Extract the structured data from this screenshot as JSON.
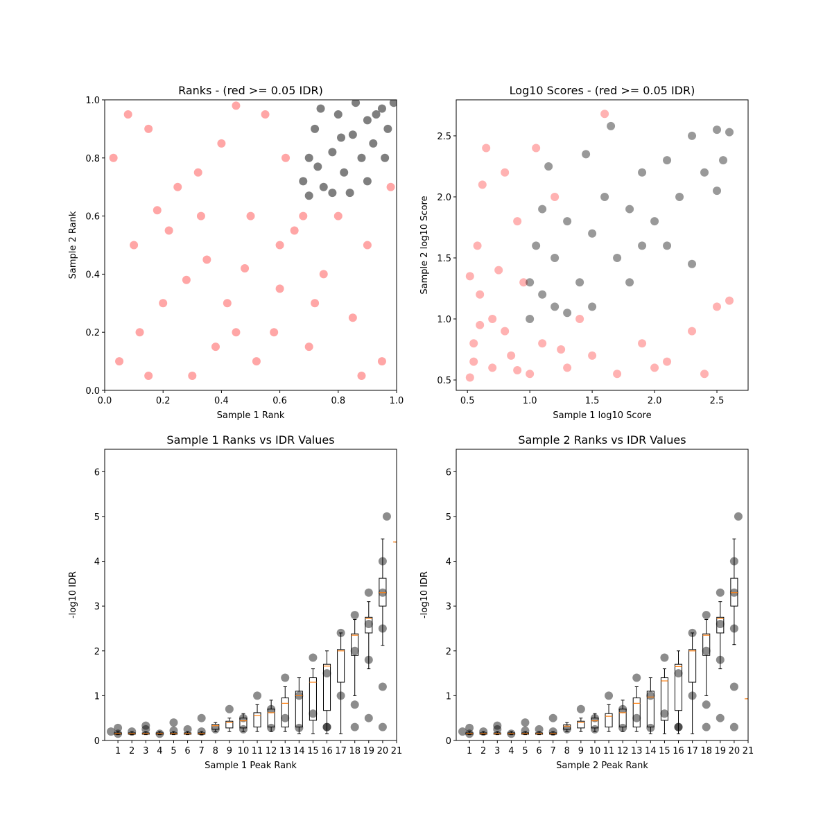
{
  "chart_data": [
    {
      "type": "scatter",
      "title": "Ranks - (red >= 0.05 IDR)",
      "xlabel": "Sample 1 Rank",
      "ylabel": "Sample 2 Rank",
      "xlim": [
        0,
        1
      ],
      "ylim": [
        0,
        1
      ],
      "xticks": [
        {
          "value": 0,
          "label": "0.0"
        },
        0.2,
        0.4,
        0.6,
        0.8,
        {
          "value": 1,
          "label": "1.0"
        }
      ],
      "yticks": [
        {
          "value": 0,
          "label": "0.0"
        },
        0.2,
        0.4,
        0.6,
        0.8,
        {
          "value": 1,
          "label": "1.0"
        }
      ],
      "series": [
        {
          "color": "red",
          "alpha": 0.35,
          "x": [
            0.05,
            0.1,
            0.15,
            0.2,
            0.25,
            0.3,
            0.35,
            0.4,
            0.45,
            0.5,
            0.55,
            0.6,
            0.65,
            0.7,
            0.75,
            0.8,
            0.85,
            0.9,
            0.95,
            0.98,
            0.12,
            0.22,
            0.32,
            0.42,
            0.52,
            0.62,
            0.08,
            0.18,
            0.28,
            0.48,
            0.58,
            0.38,
            0.72,
            0.88,
            0.03,
            0.45,
            0.68,
            0.33,
            0.15,
            0.6
          ],
          "values": [
            0.1,
            0.5,
            0.9,
            0.3,
            0.7,
            0.05,
            0.45,
            0.85,
            0.2,
            0.6,
            0.95,
            0.35,
            0.55,
            0.15,
            0.4,
            0.6,
            0.25,
            0.5,
            0.1,
            0.7,
            0.2,
            0.55,
            0.75,
            0.3,
            0.1,
            0.8,
            0.95,
            0.62,
            0.38,
            0.42,
            0.2,
            0.15,
            0.3,
            0.05,
            0.8,
            0.98,
            0.6,
            0.6,
            0.05,
            0.5
          ]
        },
        {
          "color": "black",
          "alpha": 0.5,
          "x": [
            0.68,
            0.7,
            0.72,
            0.75,
            0.78,
            0.8,
            0.82,
            0.85,
            0.88,
            0.9,
            0.92,
            0.95,
            0.97,
            0.99,
            0.74,
            0.84,
            0.78,
            0.9,
            0.96,
            0.86,
            0.73,
            0.81,
            0.93,
            0.7
          ],
          "values": [
            0.72,
            0.8,
            0.9,
            0.7,
            0.82,
            0.95,
            0.75,
            0.88,
            0.8,
            0.93,
            0.85,
            0.97,
            0.9,
            0.99,
            0.97,
            0.68,
            0.68,
            0.72,
            0.8,
            0.99,
            0.77,
            0.87,
            0.95,
            0.67
          ]
        }
      ]
    },
    {
      "type": "scatter",
      "title": "Log10 Scores - (red >= 0.05 IDR)",
      "xlabel": "Sample 1 log10 Score",
      "ylabel": "Sample 2 log10 Score",
      "xlim": [
        0.41,
        2.75
      ],
      "ylim": [
        0.415,
        2.795
      ],
      "xticks": [
        0.5,
        {
          "value": 1,
          "label": "1.0"
        },
        1.5,
        {
          "value": 2,
          "label": "2.0"
        },
        2.5
      ],
      "yticks": [
        0.5,
        {
          "value": 1,
          "label": "1.0"
        },
        1.5,
        {
          "value": 2,
          "label": "2.0"
        },
        2.5
      ],
      "series": [
        {
          "color": "red",
          "alpha": 0.3,
          "x": [
            0.52,
            0.55,
            0.6,
            0.58,
            0.62,
            0.7,
            0.8,
            0.75,
            0.9,
            0.65,
            1.0,
            1.1,
            1.3,
            1.5,
            1.4,
            1.7,
            1.9,
            2.1,
            2.3,
            2.5,
            2.4,
            0.55,
            0.6,
            0.85,
            0.7,
            0.95,
            1.2,
            1.05,
            0.8,
            2.6,
            1.6,
            0.52,
            0.9,
            1.25,
            2.0
          ],
          "values": [
            0.52,
            0.8,
            1.2,
            1.6,
            2.1,
            0.6,
            0.9,
            1.4,
            1.8,
            2.4,
            0.55,
            0.8,
            0.6,
            0.7,
            1.0,
            0.55,
            0.8,
            0.65,
            0.9,
            1.1,
            0.55,
            0.65,
            0.95,
            0.7,
            1.0,
            1.3,
            2.0,
            2.4,
            2.2,
            1.15,
            2.68,
            1.35,
            0.58,
            0.75,
            0.6
          ]
        },
        {
          "color": "black",
          "alpha": 0.4,
          "x": [
            1.0,
            1.0,
            1.05,
            1.1,
            1.2,
            1.3,
            1.4,
            1.5,
            1.6,
            1.7,
            1.8,
            1.9,
            2.0,
            2.1,
            2.2,
            2.3,
            2.4,
            2.5,
            2.55,
            1.2,
            1.5,
            1.8,
            2.1,
            2.3,
            2.5,
            1.15,
            1.45,
            1.65,
            1.1,
            2.6,
            1.9,
            1.3
          ],
          "values": [
            1.0,
            1.3,
            1.6,
            1.2,
            1.5,
            1.8,
            1.3,
            1.7,
            2.0,
            1.5,
            1.9,
            2.2,
            1.8,
            2.3,
            2.0,
            2.5,
            2.2,
            2.55,
            2.3,
            1.1,
            1.1,
            1.3,
            1.6,
            1.45,
            2.05,
            2.25,
            2.35,
            2.58,
            1.9,
            2.53,
            1.6,
            1.05
          ]
        }
      ]
    },
    {
      "type": "box",
      "title": "Sample 1 Ranks vs IDR Values",
      "xlabel": "Sample 1 Peak Rank",
      "ylabel": "-log10 IDR",
      "xlim": [
        0.05,
        21
      ],
      "ylim": [
        0,
        6.5
      ],
      "xticks": [
        1,
        2,
        3,
        4,
        5,
        6,
        7,
        8,
        9,
        10,
        11,
        12,
        13,
        14,
        15,
        16,
        17,
        18,
        19,
        20,
        21
      ],
      "yticks": [
        0,
        1,
        2,
        3,
        4,
        5,
        6
      ],
      "points": {
        "color": "black",
        "alpha": 0.45,
        "x": [
          0.5,
          1,
          2,
          3,
          4,
          5,
          6,
          7,
          8,
          10,
          12,
          14,
          16,
          18,
          20,
          1,
          3,
          5,
          7,
          9,
          11,
          13,
          15,
          17,
          18,
          19,
          20,
          20.3,
          10,
          12,
          14,
          16,
          18,
          19,
          20,
          15,
          17,
          19,
          20,
          13,
          18,
          20,
          16,
          19
        ],
        "values": [
          0.2,
          0.15,
          0.2,
          0.25,
          0.15,
          0.22,
          0.25,
          0.2,
          0.25,
          0.25,
          0.28,
          0.28,
          0.3,
          0.3,
          0.3,
          0.28,
          0.33,
          0.4,
          0.5,
          0.7,
          1.0,
          1.4,
          1.85,
          2.4,
          2.8,
          3.3,
          4.0,
          5.0,
          0.5,
          0.7,
          1.0,
          1.5,
          2.0,
          2.6,
          3.3,
          0.6,
          1.0,
          1.8,
          2.5,
          0.5,
          0.8,
          1.2,
          0.3,
          0.5
        ]
      },
      "boxes": [
        {
          "position": 1,
          "median": 0.15,
          "q1": 0.14,
          "q3": 0.17,
          "whislo": 0.13,
          "whishi": 0.2
        },
        {
          "position": 2,
          "median": 0.15,
          "q1": 0.14,
          "q3": 0.17,
          "whislo": 0.13,
          "whishi": 0.2
        },
        {
          "position": 3,
          "median": 0.15,
          "q1": 0.14,
          "q3": 0.17,
          "whislo": 0.13,
          "whishi": 0.2
        },
        {
          "position": 4,
          "median": 0.15,
          "q1": 0.14,
          "q3": 0.17,
          "whislo": 0.13,
          "whishi": 0.2
        },
        {
          "position": 5,
          "median": 0.15,
          "q1": 0.14,
          "q3": 0.17,
          "whislo": 0.13,
          "whishi": 0.2
        },
        {
          "position": 6,
          "median": 0.15,
          "q1": 0.14,
          "q3": 0.17,
          "whislo": 0.13,
          "whishi": 0.2
        },
        {
          "position": 7,
          "median": 0.15,
          "q1": 0.14,
          "q3": 0.17,
          "whislo": 0.13,
          "whishi": 0.2
        },
        {
          "position": 8,
          "median": 0.33,
          "q1": 0.25,
          "q3": 0.36,
          "whislo": 0.2,
          "whishi": 0.4
        },
        {
          "position": 9,
          "median": 0.4,
          "q1": 0.28,
          "q3": 0.43,
          "whislo": 0.2,
          "whishi": 0.5
        },
        {
          "position": 10,
          "median": 0.44,
          "q1": 0.28,
          "q3": 0.5,
          "whislo": 0.2,
          "whishi": 0.6
        },
        {
          "position": 11,
          "median": 0.56,
          "q1": 0.3,
          "q3": 0.62,
          "whislo": 0.2,
          "whishi": 0.8
        },
        {
          "position": 12,
          "median": 0.62,
          "q1": 0.3,
          "q3": 0.7,
          "whislo": 0.2,
          "whishi": 0.9
        },
        {
          "position": 13,
          "median": 0.83,
          "q1": 0.3,
          "q3": 0.95,
          "whislo": 0.2,
          "whishi": 1.2
        },
        {
          "position": 14,
          "median": 1.0,
          "q1": 0.3,
          "q3": 1.1,
          "whislo": 0.15,
          "whishi": 1.4
        },
        {
          "position": 15,
          "median": 1.3,
          "q1": 0.45,
          "q3": 1.4,
          "whislo": 0.15,
          "whishi": 1.6
        },
        {
          "position": 16,
          "median": 1.66,
          "q1": 0.67,
          "q3": 1.7,
          "whislo": 0.15,
          "whishi": 2.0
        },
        {
          "position": 17,
          "median": 2.0,
          "q1": 1.3,
          "q3": 2.03,
          "whislo": 0.15,
          "whishi": 2.4
        },
        {
          "position": 18,
          "median": 2.35,
          "q1": 1.9,
          "q3": 2.38,
          "whislo": 1.0,
          "whishi": 2.7
        },
        {
          "position": 19,
          "median": 2.72,
          "q1": 2.4,
          "q3": 2.75,
          "whislo": 1.6,
          "whishi": 3.1
        },
        {
          "position": 20,
          "median": 3.3,
          "q1": 3.0,
          "q3": 3.62,
          "whislo": 2.12,
          "whishi": 4.5
        },
        {
          "position": 21,
          "median": 4.43,
          "q1": 4.43,
          "q3": 4.43,
          "whislo": 4.43,
          "whishi": 4.43
        }
      ]
    },
    {
      "type": "box",
      "title": "Sample 2 Ranks vs IDR Values",
      "xlabel": "Sample 2 Peak Rank",
      "ylabel": "-log10 IDR",
      "xlim": [
        0.05,
        21
      ],
      "ylim": [
        0,
        6.5
      ],
      "xticks": [
        1,
        2,
        3,
        4,
        5,
        6,
        7,
        8,
        9,
        10,
        11,
        12,
        13,
        14,
        15,
        16,
        17,
        18,
        19,
        20,
        21
      ],
      "yticks": [
        0,
        1,
        2,
        3,
        4,
        5,
        6
      ],
      "points": {
        "color": "black",
        "alpha": 0.45,
        "x": [
          0.5,
          1,
          2,
          3,
          4,
          5,
          6,
          7,
          8,
          10,
          12,
          14,
          16,
          18,
          20,
          1,
          3,
          5,
          7,
          9,
          11,
          13,
          15,
          17,
          18,
          19,
          20,
          20.3,
          10,
          12,
          14,
          16,
          18,
          19,
          20,
          15,
          17,
          19,
          20,
          13,
          18,
          20,
          16,
          19
        ],
        "values": [
          0.2,
          0.15,
          0.2,
          0.25,
          0.15,
          0.22,
          0.25,
          0.2,
          0.25,
          0.25,
          0.28,
          0.28,
          0.3,
          0.3,
          0.3,
          0.28,
          0.33,
          0.4,
          0.5,
          0.7,
          1.0,
          1.4,
          1.85,
          2.4,
          2.8,
          3.3,
          4.0,
          5.0,
          0.5,
          0.7,
          1.0,
          1.5,
          2.0,
          2.6,
          3.3,
          0.6,
          1.0,
          1.8,
          2.5,
          0.5,
          0.8,
          1.2,
          0.3,
          0.5
        ]
      },
      "boxes": [
        {
          "position": 1,
          "median": 0.15,
          "q1": 0.14,
          "q3": 0.17,
          "whislo": 0.13,
          "whishi": 0.2
        },
        {
          "position": 2,
          "median": 0.15,
          "q1": 0.14,
          "q3": 0.17,
          "whislo": 0.13,
          "whishi": 0.2
        },
        {
          "position": 3,
          "median": 0.15,
          "q1": 0.14,
          "q3": 0.17,
          "whislo": 0.13,
          "whishi": 0.2
        },
        {
          "position": 4,
          "median": 0.15,
          "q1": 0.14,
          "q3": 0.17,
          "whislo": 0.13,
          "whishi": 0.2
        },
        {
          "position": 5,
          "median": 0.15,
          "q1": 0.14,
          "q3": 0.17,
          "whislo": 0.13,
          "whishi": 0.2
        },
        {
          "position": 6,
          "median": 0.15,
          "q1": 0.14,
          "q3": 0.17,
          "whislo": 0.13,
          "whishi": 0.2
        },
        {
          "position": 7,
          "median": 0.15,
          "q1": 0.14,
          "q3": 0.17,
          "whislo": 0.13,
          "whishi": 0.2
        },
        {
          "position": 8,
          "median": 0.32,
          "q1": 0.25,
          "q3": 0.35,
          "whislo": 0.2,
          "whishi": 0.4
        },
        {
          "position": 9,
          "median": 0.4,
          "q1": 0.28,
          "q3": 0.43,
          "whislo": 0.2,
          "whishi": 0.5
        },
        {
          "position": 10,
          "median": 0.44,
          "q1": 0.28,
          "q3": 0.5,
          "whislo": 0.2,
          "whishi": 0.6
        },
        {
          "position": 11,
          "median": 0.54,
          "q1": 0.3,
          "q3": 0.6,
          "whislo": 0.2,
          "whishi": 0.8
        },
        {
          "position": 12,
          "median": 0.62,
          "q1": 0.3,
          "q3": 0.7,
          "whislo": 0.2,
          "whishi": 0.9
        },
        {
          "position": 13,
          "median": 0.83,
          "q1": 0.3,
          "q3": 0.95,
          "whislo": 0.2,
          "whishi": 1.2
        },
        {
          "position": 14,
          "median": 0.97,
          "q1": 0.3,
          "q3": 1.1,
          "whislo": 0.15,
          "whishi": 1.4
        },
        {
          "position": 15,
          "median": 1.33,
          "q1": 0.45,
          "q3": 1.4,
          "whislo": 0.15,
          "whishi": 1.6
        },
        {
          "position": 16,
          "median": 1.65,
          "q1": 0.67,
          "q3": 1.7,
          "whislo": 0.15,
          "whishi": 2.0
        },
        {
          "position": 17,
          "median": 2.0,
          "q1": 1.3,
          "q3": 2.03,
          "whislo": 0.15,
          "whishi": 2.4
        },
        {
          "position": 18,
          "median": 2.35,
          "q1": 1.9,
          "q3": 2.38,
          "whislo": 1.0,
          "whishi": 2.7
        },
        {
          "position": 19,
          "median": 2.72,
          "q1": 2.4,
          "q3": 2.75,
          "whislo": 1.6,
          "whishi": 3.1
        },
        {
          "position": 20,
          "median": 3.3,
          "q1": 3.0,
          "q3": 3.62,
          "whislo": 2.14,
          "whishi": 4.5
        },
        {
          "position": 21,
          "median": 0.93,
          "q1": 0.93,
          "q3": 0.93,
          "whislo": 0.93,
          "whishi": 0.93
        }
      ]
    }
  ]
}
